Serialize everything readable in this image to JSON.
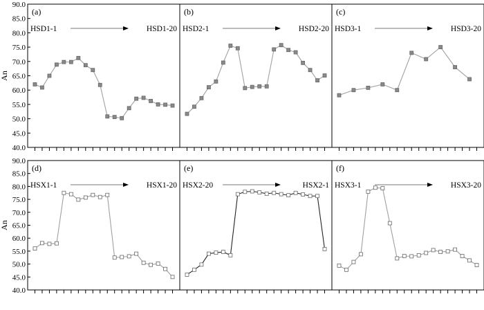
{
  "chart_data": [
    {
      "type": "line",
      "panel_label": "(a)",
      "ylabel": "An",
      "ylim": [
        40,
        90
      ],
      "yticks": [
        "40.0",
        "45.0",
        "50.0",
        "55.0",
        "60.0",
        "65.0",
        "70.0",
        "75.0",
        "80.0",
        "85.0",
        "90.0"
      ],
      "range_start": "HSD1-1",
      "range_end": "HSD1-20",
      "marker": "filled-square",
      "line_color": "#a0a0a0",
      "values": [
        62.0,
        60.9,
        65.0,
        68.9,
        69.8,
        69.8,
        71.2,
        68.7,
        67.0,
        61.8,
        50.8,
        50.6,
        50.2,
        53.7,
        57.0,
        57.3,
        56.2,
        55.0,
        54.9,
        54.6
      ]
    },
    {
      "type": "line",
      "panel_label": "(b)",
      "ylim": [
        40,
        90
      ],
      "range_start": "HSD2-1",
      "range_end": "HSD2-20",
      "marker": "filled-square",
      "line_color": "#a0a0a0",
      "values": [
        51.7,
        54.2,
        57.2,
        61.0,
        63.0,
        69.6,
        75.5,
        74.6,
        60.7,
        61.1,
        61.3,
        61.3,
        74.2,
        75.7,
        74.0,
        73.2,
        69.5,
        67.0,
        63.4,
        65.1
      ]
    },
    {
      "type": "line",
      "panel_label": "(c)",
      "ylim": [
        40,
        90
      ],
      "range_start": "HSD3-1",
      "range_end": "HSD3-20",
      "marker": "filled-square",
      "line_color": "#a0a0a0",
      "values": [
        58.2,
        60.0,
        60.8,
        62.0,
        60.0,
        73.0,
        70.8,
        75.0,
        68.0,
        63.8
      ],
      "x_index": [
        0,
        2,
        4,
        6,
        8,
        10,
        12,
        14,
        16,
        18
      ]
    },
    {
      "type": "line",
      "panel_label": "(d)",
      "ylabel": "An",
      "ylim": [
        40,
        90
      ],
      "yticks": [
        "40.0",
        "45.0",
        "50.0",
        "55.0",
        "60.0",
        "65.0",
        "70.0",
        "75.0",
        "80.0",
        "85.0",
        "90.0"
      ],
      "range_start": "HSX1-1",
      "range_end": "HSX1-20",
      "marker": "open-square",
      "line_color": "#a0a0a0",
      "values": [
        56.0,
        58.1,
        57.8,
        58.0,
        77.5,
        77.0,
        74.9,
        75.7,
        76.7,
        75.9,
        76.7,
        52.5,
        52.7,
        53.0,
        54.0,
        50.5,
        49.7,
        50.2,
        48.1,
        45.0
      ]
    },
    {
      "type": "line",
      "panel_label": "(e)",
      "ylim": [
        40,
        90
      ],
      "range_start": "HSX2-20",
      "range_end": "HSX2-1",
      "marker": "open-square",
      "line_color": "#222222",
      "values": [
        45.9,
        47.8,
        49.8,
        54.0,
        54.4,
        54.7,
        53.4,
        77.0,
        77.9,
        78.1,
        77.7,
        77.2,
        77.5,
        77.0,
        76.6,
        77.5,
        76.9,
        76.3,
        76.3,
        55.8
      ]
    },
    {
      "type": "line",
      "panel_label": "(f)",
      "ylim": [
        40,
        90
      ],
      "range_start": "HSX3-1",
      "range_end": "HSX3-20",
      "marker": "open-square",
      "line_color": "#a0a0a0",
      "values": [
        49.4,
        47.8,
        50.8,
        53.8,
        78.0,
        79.5,
        79.3,
        65.8,
        52.2,
        53.1,
        53.0,
        53.4,
        54.3,
        55.4,
        54.7,
        54.9,
        55.6,
        53.1,
        51.4,
        49.6
      ]
    }
  ]
}
